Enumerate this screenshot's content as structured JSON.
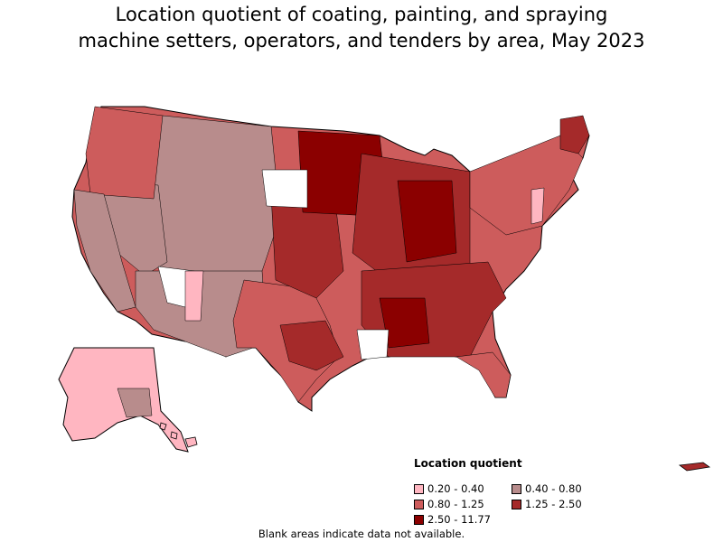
{
  "title": {
    "line1": "Location quotient of coating, painting, and spraying",
    "line2": "machine setters, operators, and tenders by area, May 2023"
  },
  "legend": {
    "title": "Location quotient",
    "items": [
      {
        "label": "0.20 - 0.40",
        "color": "#ffb6c1"
      },
      {
        "label": "0.40 - 0.80",
        "color": "#b88c8c"
      },
      {
        "label": "0.80 - 1.25",
        "color": "#cd5c5c"
      },
      {
        "label": "1.25 - 2.50",
        "color": "#a52a2a"
      },
      {
        "label": "2.50 - 11.77",
        "color": "#8b0000"
      }
    ]
  },
  "footnote": "Blank areas indicate data not available.",
  "colors": {
    "q1": "#ffb6c1",
    "q2": "#b88c8c",
    "q3": "#cd5c5c",
    "q4": "#a52a2a",
    "q5": "#8b0000",
    "blank": "#ffffff"
  }
}
